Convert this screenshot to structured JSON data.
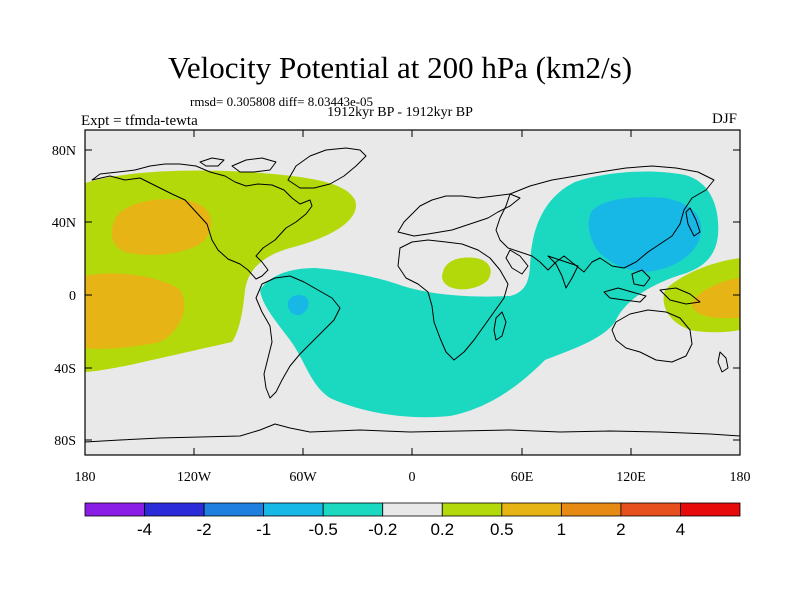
{
  "title": "Velocity Potential at 200 hPa (km2/s)",
  "stats": "rmsd= 0.305808 diff= 8.03443e-05",
  "subtitle": "1912kyr BP - 1912kyr BP",
  "experiment": "Expt = tfmda-tewta",
  "season": "DJF",
  "axes": {
    "lat_labels": [
      "80N",
      "40N",
      "0",
      "40S",
      "80S"
    ],
    "lon_labels": [
      "180",
      "120W",
      "60W",
      "0",
      "60E",
      "120E",
      "180"
    ]
  },
  "colorbar": {
    "labels": [
      "-4",
      "-2",
      "-1",
      "-0.5",
      "-0.2",
      "0.2",
      "0.5",
      "1",
      "2",
      "4"
    ],
    "colors": [
      "#8a1ee6",
      "#2b2bd9",
      "#1f7fe0",
      "#18b8e6",
      "#1ad9c0",
      "#e8e8e8",
      "#b4d90a",
      "#e6b414",
      "#e68a14",
      "#e6501e",
      "#e60a0a"
    ]
  },
  "map_colors": {
    "background": "#e9e9e9",
    "pos_low": "#b4d90a",
    "pos_mid": "#e6b414",
    "neg_low": "#1ad9c0",
    "neg_mid": "#18b8e6",
    "coast": "#000000"
  }
}
